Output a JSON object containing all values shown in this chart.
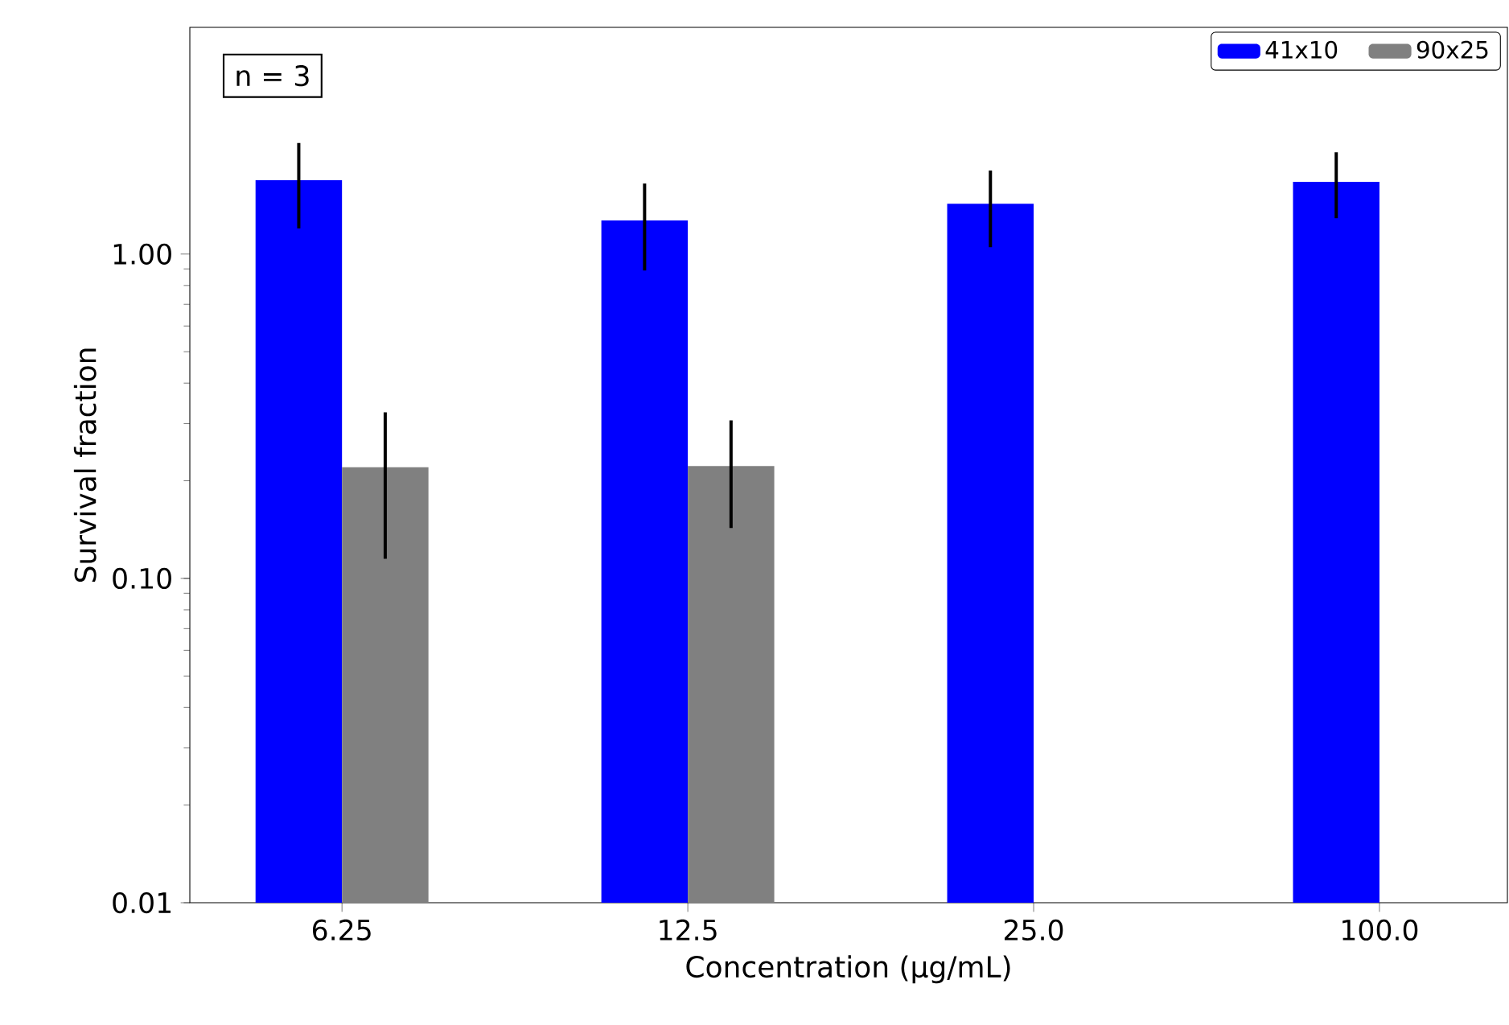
{
  "chart_data": {
    "type": "bar",
    "xlabel": "Concentration (μg/mL)",
    "ylabel": "Survival fraction",
    "categories": [
      "6.25",
      "12.5",
      "25.0",
      "100.0"
    ],
    "series": [
      {
        "name": "41x10",
        "color": "#0000ff",
        "values": [
          1.69,
          1.27,
          1.43,
          1.67
        ],
        "errors": [
          [
            1.2,
            2.2
          ],
          [
            0.89,
            1.65
          ],
          [
            1.05,
            1.81
          ],
          [
            1.29,
            2.06
          ]
        ]
      },
      {
        "name": "90x25",
        "color": "#808080",
        "values": [
          0.22,
          0.222,
          null,
          null
        ],
        "errors": [
          [
            0.115,
            0.325
          ],
          [
            0.143,
            0.307
          ],
          null,
          null
        ]
      }
    ],
    "log": "y",
    "ylim": [
      0.01,
      5
    ],
    "yticks": [
      {
        "value": 0.01,
        "label": "0.01"
      },
      {
        "value": 0.1,
        "label": "0.10"
      },
      {
        "value": 1,
        "label": "1.00"
      }
    ],
    "legend": "top right",
    "grid": false,
    "annotations": [
      "n = 3"
    ]
  }
}
